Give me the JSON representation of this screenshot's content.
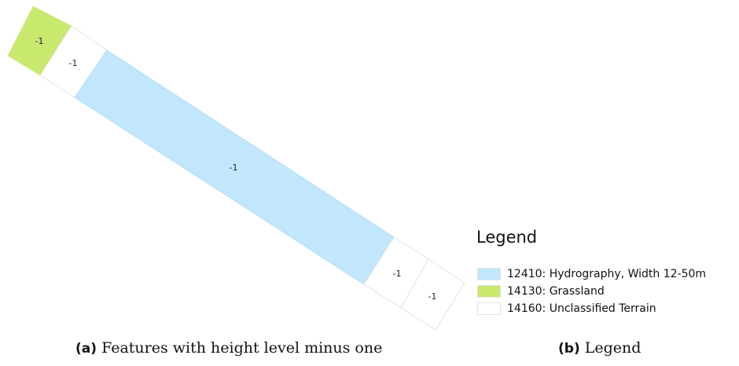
{
  "map": {
    "features": [
      {
        "name": "grassland-parcel",
        "class_code": "14130",
        "label": "-1"
      },
      {
        "name": "unclassified-parcel-upper",
        "class_code": "14160",
        "label": "-1"
      },
      {
        "name": "hydrography-strip",
        "class_code": "12410",
        "label": "-1"
      },
      {
        "name": "unclassified-parcel-lower-1",
        "class_code": "14160",
        "label": "-1"
      },
      {
        "name": "unclassified-parcel-lower-2",
        "class_code": "14160",
        "label": "-1"
      }
    ]
  },
  "legend": {
    "title": "Legend",
    "items": [
      {
        "code": "12410",
        "label": "12410: Hydrography, Width 12-50m",
        "color": "#c2e6fb"
      },
      {
        "code": "14130",
        "label": "14130: Grassland",
        "color": "#c9e86e"
      },
      {
        "code": "14160",
        "label": "14160: Unclassified Terrain",
        "color": "#ffffff"
      }
    ]
  },
  "captions": {
    "a_tag": "(a)",
    "a_text": "Features with height level minus one",
    "b_tag": "(b)",
    "b_text": "Legend"
  },
  "colors": {
    "hydrography": "#c2e6fb",
    "grassland": "#c9e86e",
    "unclassified": "#ffffff",
    "outline": "#e3e3e3"
  }
}
